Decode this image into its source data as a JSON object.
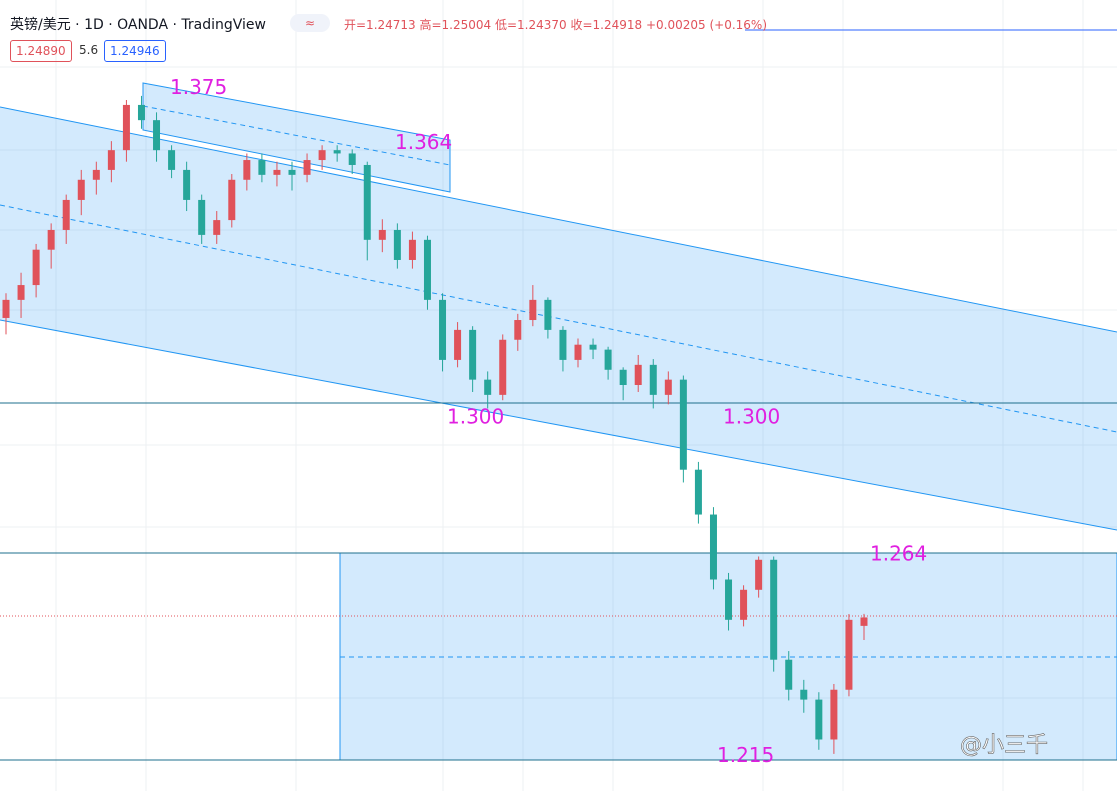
{
  "header": {
    "symbol": "英镑/美元 · 1D · OANDA · TradingView",
    "ohlc": "开=1.24713 高=1.25004 低=1.24370 收=1.24918 +0.00205 (+0.16%)",
    "bid": "1.24890",
    "spread": "5.6",
    "ask": "1.24946"
  },
  "levels": [
    1.375,
    1.364,
    {
      "value": 1.3,
      "label": "1.300"
    },
    {
      "value": 1.3,
      "label": "1.300"
    },
    1.264,
    1.215
  ],
  "up_color": "#e0525a",
  "down_color": "#26a69a",
  "candles": [
    [
      1.322,
      1.328,
      1.318,
      1.3264
    ],
    [
      1.3264,
      1.333,
      1.322,
      1.33
    ],
    [
      1.33,
      1.34,
      1.327,
      1.3386
    ],
    [
      1.3386,
      1.345,
      1.334,
      1.3434
    ],
    [
      1.3434,
      1.352,
      1.34,
      1.3507
    ],
    [
      1.3507,
      1.358,
      1.347,
      1.3556
    ],
    [
      1.3556,
      1.36,
      1.352,
      1.358
    ],
    [
      1.358,
      1.365,
      1.355,
      1.3628
    ],
    [
      1.3628,
      1.375,
      1.36,
      1.3738
    ],
    [
      1.3738,
      1.376,
      1.368,
      1.3701
    ],
    [
      1.3701,
      1.372,
      1.36,
      1.3628
    ],
    [
      1.3628,
      1.364,
      1.356,
      1.358
    ],
    [
      1.358,
      1.36,
      1.348,
      1.3507
    ],
    [
      1.3507,
      1.352,
      1.34,
      1.3422
    ],
    [
      1.3422,
      1.348,
      1.34,
      1.3458
    ],
    [
      1.3458,
      1.357,
      1.344,
      1.3556
    ],
    [
      1.3556,
      1.362,
      1.353,
      1.3604
    ],
    [
      1.3604,
      1.362,
      1.355,
      1.3568
    ],
    [
      1.3568,
      1.36,
      1.354,
      1.358
    ],
    [
      1.358,
      1.36,
      1.353,
      1.3568
    ],
    [
      1.3568,
      1.362,
      1.355,
      1.3604
    ],
    [
      1.3604,
      1.364,
      1.358,
      1.3628
    ],
    [
      1.3628,
      1.364,
      1.36,
      1.362
    ],
    [
      1.362,
      1.363,
      1.357,
      1.3592
    ],
    [
      1.3592,
      1.36,
      1.336,
      1.341
    ],
    [
      1.341,
      1.346,
      1.338,
      1.3434
    ],
    [
      1.3434,
      1.345,
      1.334,
      1.3361
    ],
    [
      1.3361,
      1.343,
      1.334,
      1.341
    ],
    [
      1.341,
      1.342,
      1.324,
      1.3264
    ],
    [
      1.3264,
      1.328,
      1.309,
      1.3118
    ],
    [
      1.3118,
      1.321,
      1.31,
      1.3191
    ],
    [
      1.3191,
      1.32,
      1.304,
      1.307
    ],
    [
      1.307,
      1.309,
      1.3,
      1.3033
    ],
    [
      1.3033,
      1.318,
      1.302,
      1.3167
    ],
    [
      1.3167,
      1.323,
      1.314,
      1.3215
    ],
    [
      1.3215,
      1.33,
      1.32,
      1.3264
    ],
    [
      1.3264,
      1.327,
      1.317,
      1.3191
    ],
    [
      1.3191,
      1.32,
      1.309,
      1.3118
    ],
    [
      1.3118,
      1.317,
      1.31,
      1.3155
    ],
    [
      1.3155,
      1.317,
      1.312,
      1.3143
    ],
    [
      1.3143,
      1.315,
      1.307,
      1.3094
    ],
    [
      1.3094,
      1.31,
      1.302,
      1.3057
    ],
    [
      1.3057,
      1.313,
      1.304,
      1.3106
    ],
    [
      1.3106,
      1.312,
      1.3,
      1.3033
    ],
    [
      1.3033,
      1.309,
      1.301,
      1.307
    ],
    [
      1.307,
      1.308,
      1.282,
      1.2851
    ],
    [
      1.2851,
      1.287,
      1.272,
      1.2742
    ],
    [
      1.2742,
      1.276,
      1.256,
      1.2584
    ],
    [
      1.2584,
      1.26,
      1.246,
      1.2486
    ],
    [
      1.2486,
      1.257,
      1.247,
      1.2559
    ],
    [
      1.2559,
      1.264,
      1.254,
      1.2632
    ],
    [
      1.2632,
      1.264,
      1.236,
      1.2389
    ],
    [
      1.2389,
      1.241,
      1.229,
      1.2316
    ],
    [
      1.2316,
      1.234,
      1.226,
      1.2292
    ],
    [
      1.2292,
      1.231,
      1.217,
      1.2195
    ],
    [
      1.2195,
      1.233,
      1.216,
      1.2316
    ],
    [
      1.2316,
      1.25,
      1.23,
      1.2486
    ],
    [
      1.24713,
      1.25004,
      1.2437,
      1.24918
    ]
  ],
  "watermark": "@小三千"
}
